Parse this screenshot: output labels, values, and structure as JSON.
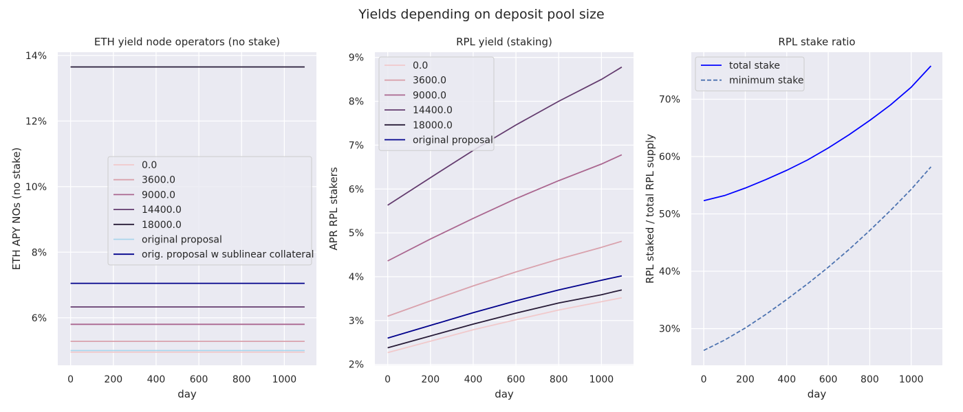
{
  "figure": {
    "suptitle": "Yields depending on deposit pool size"
  },
  "chart_data": [
    {
      "type": "line",
      "title": "ETH yield node operators (no stake)",
      "xlabel": "day",
      "ylabel": "ETH APY NOs (no stake)",
      "xlim": [
        -60,
        1150
      ],
      "ylim": [
        4.55,
        14.1
      ],
      "xticks": [
        0,
        200,
        400,
        600,
        800,
        1000
      ],
      "xtick_labels": [
        "0",
        "200",
        "400",
        "600",
        "800",
        "1000"
      ],
      "yticks": [
        6,
        8,
        10,
        12,
        14
      ],
      "ytick_labels": [
        "6%",
        "8%",
        "10%",
        "12%",
        "14%"
      ],
      "legend": "center-right",
      "grid": true,
      "series": [
        {
          "name": "0.0",
          "color": "#f1c9cb",
          "dash": "",
          "x": [
            0,
            1095
          ],
          "y": [
            4.95,
            4.95
          ]
        },
        {
          "name": "3600.0",
          "color": "#d9a1ac",
          "dash": "",
          "x": [
            0,
            1095
          ],
          "y": [
            5.28,
            5.28
          ]
        },
        {
          "name": "9000.0",
          "color": "#aa668f",
          "dash": "",
          "x": [
            0,
            1095
          ],
          "y": [
            5.8,
            5.8
          ]
        },
        {
          "name": "14400.0",
          "color": "#633b6e",
          "dash": "",
          "x": [
            0,
            1095
          ],
          "y": [
            6.33,
            6.33
          ]
        },
        {
          "name": "18000.0",
          "color": "#261a36",
          "dash": "",
          "x": [
            0,
            1095
          ],
          "y": [
            13.65,
            13.65
          ]
        },
        {
          "name": "original proposal",
          "color": "#a8d5ec",
          "dash": "",
          "x": [
            0,
            1095
          ],
          "y": [
            5.0,
            5.0
          ]
        },
        {
          "name": "orig. proposal w sublinear collateral",
          "color": "#00008b",
          "dash": "",
          "x": [
            0,
            1095
          ],
          "y": [
            7.05,
            7.05
          ]
        }
      ]
    },
    {
      "type": "line",
      "title": "RPL yield (staking)",
      "xlabel": "day",
      "ylabel": "APR RPL stakers",
      "xlim": [
        -60,
        1150
      ],
      "ylim": [
        1.98,
        9.12
      ],
      "xticks": [
        0,
        200,
        400,
        600,
        800,
        1000
      ],
      "xtick_labels": [
        "0",
        "200",
        "400",
        "600",
        "800",
        "1000"
      ],
      "yticks": [
        2,
        3,
        4,
        5,
        6,
        7,
        8,
        9
      ],
      "ytick_labels": [
        "2%",
        "3%",
        "4%",
        "5%",
        "6%",
        "7%",
        "8%",
        "9%"
      ],
      "legend": "top-left",
      "grid": true,
      "series": [
        {
          "name": "0.0",
          "color": "#f1c9cb",
          "dash": "",
          "x": [
            0,
            200,
            400,
            600,
            800,
            1000,
            1095
          ],
          "y": [
            2.27,
            2.53,
            2.79,
            3.02,
            3.24,
            3.43,
            3.52
          ]
        },
        {
          "name": "3600.0",
          "color": "#d9a1ac",
          "dash": "",
          "x": [
            0,
            200,
            400,
            600,
            800,
            1000,
            1095
          ],
          "y": [
            3.1,
            3.45,
            3.79,
            4.11,
            4.4,
            4.67,
            4.81
          ]
        },
        {
          "name": "9000.0",
          "color": "#aa668f",
          "dash": "",
          "x": [
            0,
            200,
            400,
            600,
            800,
            1000,
            1095
          ],
          "y": [
            4.36,
            4.86,
            5.33,
            5.78,
            6.19,
            6.57,
            6.78
          ]
        },
        {
          "name": "14400.0",
          "color": "#633b6e",
          "dash": "",
          "x": [
            0,
            200,
            400,
            600,
            800,
            1000,
            1095
          ],
          "y": [
            5.63,
            6.26,
            6.88,
            7.46,
            8.0,
            8.5,
            8.78
          ]
        },
        {
          "name": "18000.0",
          "color": "#261a36",
          "dash": "",
          "x": [
            0,
            200,
            400,
            600,
            800,
            1000,
            1095
          ],
          "y": [
            2.38,
            2.65,
            2.92,
            3.17,
            3.4,
            3.59,
            3.7
          ]
        },
        {
          "name": "original proposal",
          "color": "#00008b",
          "dash": "",
          "x": [
            0,
            200,
            400,
            600,
            800,
            1000,
            1095
          ],
          "y": [
            2.6,
            2.89,
            3.18,
            3.45,
            3.7,
            3.92,
            4.02
          ]
        }
      ]
    },
    {
      "type": "line",
      "title": "RPL stake ratio",
      "xlabel": "day",
      "ylabel": "RPL staked / total RPL supply",
      "xlim": [
        -60,
        1150
      ],
      "ylim": [
        23.6,
        78.2
      ],
      "xticks": [
        0,
        200,
        400,
        600,
        800,
        1000
      ],
      "xtick_labels": [
        "0",
        "200",
        "400",
        "600",
        "800",
        "1000"
      ],
      "yticks": [
        30,
        40,
        50,
        60,
        70
      ],
      "ytick_labels": [
        "30%",
        "40%",
        "50%",
        "60%",
        "70%"
      ],
      "legend": "top-left",
      "grid": true,
      "series": [
        {
          "name": "total stake",
          "color": "#0000ff",
          "dash": "",
          "x": [
            0,
            100,
            200,
            300,
            400,
            500,
            600,
            700,
            800,
            900,
            1000,
            1095
          ],
          "y": [
            52.3,
            53.2,
            54.5,
            56.0,
            57.6,
            59.4,
            61.5,
            63.8,
            66.3,
            69.0,
            72.1,
            75.8
          ]
        },
        {
          "name": "minimum stake",
          "color": "#4c72b0",
          "dash": "6,3",
          "x": [
            0,
            100,
            200,
            300,
            400,
            500,
            600,
            700,
            800,
            900,
            1000,
            1095
          ],
          "y": [
            26.2,
            28.0,
            30.1,
            32.5,
            35.1,
            37.8,
            40.7,
            43.8,
            47.1,
            50.6,
            54.3,
            58.2
          ]
        }
      ]
    }
  ]
}
